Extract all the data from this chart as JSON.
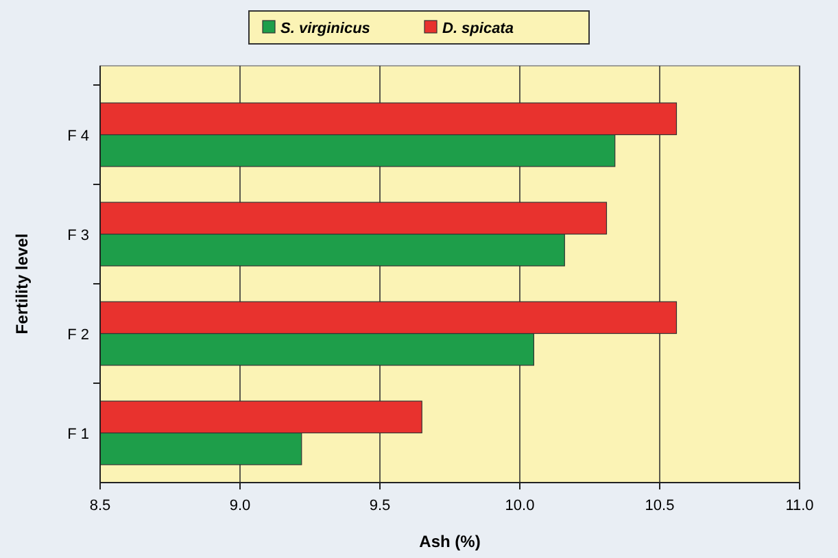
{
  "chart_data": {
    "type": "bar",
    "orientation": "horizontal",
    "xlabel": "Ash (%)",
    "ylabel": "Fertility level",
    "categories": [
      "F 4",
      "F 3",
      "F 2",
      "F 1"
    ],
    "series": [
      {
        "name": "S. virginicus",
        "color": "#1e9e4a",
        "values": [
          10.34,
          10.16,
          10.05,
          9.22
        ]
      },
      {
        "name": "D. spicata",
        "color": "#e8322e",
        "values": [
          10.56,
          10.31,
          10.56,
          9.65
        ]
      }
    ],
    "xlim": [
      8.5,
      11.0
    ],
    "xticks": [
      {
        "value": 8.5,
        "label": "8.5"
      },
      {
        "value": 9.0,
        "label": "9.0"
      },
      {
        "value": 9.5,
        "label": "9.5"
      },
      {
        "value": 10.0,
        "label": "10.0"
      },
      {
        "value": 10.5,
        "label": "10.5"
      },
      {
        "value": 11.0,
        "label": "11.0"
      }
    ],
    "grid": "x",
    "legend": "top"
  }
}
